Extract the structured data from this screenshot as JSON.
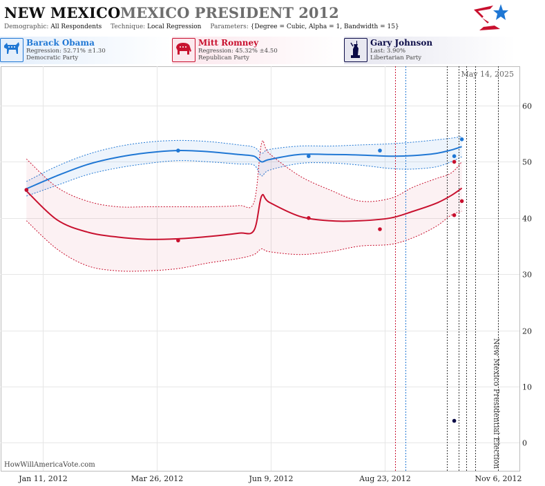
{
  "header": {
    "state": "NEW MEXICO",
    "race": "MEXICO PRESIDENT 2012",
    "demographic_label": "Demographic:",
    "demographic_value": "All Respondents",
    "technique_label": "Technique:",
    "technique_value": "Local Regression",
    "parameters_label": "Parameters:",
    "parameters_value": "{Degree = Cubic, Alpha = 1, Bandwidth = 15}"
  },
  "candidates": [
    {
      "name": "Barack Obama",
      "stat": "Regression: 52.71% ±1.30",
      "party": "Democratic Party",
      "color": "#1f77d4",
      "icon": "donkey-icon"
    },
    {
      "name": "Mitt Romney",
      "stat": "Regression: 45.32% ±4.50",
      "party": "Republican Party",
      "color": "#c8102e",
      "icon": "elephant-icon"
    },
    {
      "name": "Gary Johnson",
      "stat": "Last: 3.90%",
      "party": "Libertarian Party",
      "color": "#0a0a46",
      "icon": "liberty-icon"
    }
  ],
  "watermark": "HowWillAmericaVote.com",
  "chart_data": {
    "type": "line",
    "ylim": [
      -5,
      67
    ],
    "y_ticks": [
      0,
      10,
      20,
      30,
      40,
      50,
      60
    ],
    "x_range": [
      "2011-12-14",
      "2012-11-20"
    ],
    "x_ticks": [
      {
        "date": "2012-01-11",
        "label": "Jan 11, 2012"
      },
      {
        "date": "2012-03-26",
        "label": "Mar 26, 2012"
      },
      {
        "date": "2012-06-09",
        "label": "Jun 9, 2012"
      },
      {
        "date": "2012-08-23",
        "label": "Aug 23, 2012"
      },
      {
        "date": "2012-11-06",
        "label": "Nov 6, 2012"
      }
    ],
    "date_annotation": "May 14, 2025",
    "election_label": "New Mexico Presidential Election",
    "event_lines": [
      {
        "date": "2012-08-30",
        "color": "#c8102e"
      },
      {
        "date": "2012-09-06",
        "color": "#1f77d4"
      },
      {
        "date": "2012-10-03",
        "color": "#333333"
      },
      {
        "date": "2012-10-11",
        "color": "#333333"
      },
      {
        "date": "2012-10-16",
        "color": "#333333"
      },
      {
        "date": "2012-10-22",
        "color": "#333333"
      },
      {
        "date": "2012-11-06",
        "color": "#333333"
      }
    ],
    "series": [
      {
        "name": "Barack Obama",
        "color": "#1f77d4",
        "x": [
          "2011-12-31",
          "2012-01-20",
          "2012-02-09",
          "2012-02-29",
          "2012-03-20",
          "2012-04-09",
          "2012-04-29",
          "2012-05-19",
          "2012-05-29",
          "2012-06-03",
          "2012-06-08",
          "2012-06-28",
          "2012-07-18",
          "2012-08-07",
          "2012-08-27",
          "2012-09-11",
          "2012-09-26",
          "2012-10-06",
          "2012-10-13"
        ],
        "values": [
          45.2,
          47.5,
          49.5,
          50.8,
          51.6,
          52.0,
          51.8,
          51.3,
          51.0,
          50.0,
          50.4,
          51.3,
          51.3,
          51.2,
          51.0,
          51.1,
          51.5,
          52.1,
          52.7
        ],
        "upper": [
          46.5,
          49.2,
          51.3,
          52.7,
          53.5,
          53.8,
          53.6,
          53.0,
          52.6,
          51.5,
          52.2,
          52.8,
          52.8,
          53.0,
          53.2,
          53.5,
          53.9,
          54.2,
          54.5
        ],
        "lower": [
          43.9,
          45.8,
          47.7,
          48.9,
          49.7,
          50.2,
          50.0,
          49.6,
          49.4,
          47.5,
          48.5,
          49.7,
          49.8,
          49.4,
          48.8,
          48.7,
          49.1,
          50.0,
          50.9
        ],
        "polls": [
          {
            "x": "2011-12-31",
            "y": 45
          },
          {
            "x": "2012-04-09",
            "y": 52
          },
          {
            "x": "2012-07-04",
            "y": 51
          },
          {
            "x": "2012-08-20",
            "y": 52
          },
          {
            "x": "2012-10-08",
            "y": 51
          },
          {
            "x": "2012-10-13",
            "y": 54
          }
        ]
      },
      {
        "name": "Mitt Romney",
        "color": "#c8102e",
        "x": [
          "2011-12-31",
          "2012-01-20",
          "2012-02-09",
          "2012-02-29",
          "2012-03-20",
          "2012-04-09",
          "2012-04-29",
          "2012-05-19",
          "2012-05-29",
          "2012-06-03",
          "2012-06-08",
          "2012-06-28",
          "2012-07-18",
          "2012-08-07",
          "2012-08-27",
          "2012-09-11",
          "2012-09-26",
          "2012-10-06",
          "2012-10-13"
        ],
        "values": [
          44.8,
          39.7,
          37.5,
          36.6,
          36.2,
          36.3,
          36.7,
          37.3,
          37.8,
          43.9,
          42.8,
          40.3,
          39.5,
          39.5,
          40.0,
          41.2,
          42.6,
          44.0,
          45.3
        ],
        "upper": [
          50.5,
          45.5,
          43.0,
          42.0,
          42.0,
          42.0,
          42.0,
          42.2,
          42.8,
          53.3,
          51.5,
          47.5,
          45.0,
          43.0,
          43.5,
          45.5,
          47.0,
          48.0,
          50.0
        ],
        "lower": [
          39.5,
          34.5,
          31.5,
          30.6,
          30.6,
          31.0,
          32.0,
          32.8,
          33.5,
          34.5,
          34.0,
          33.5,
          34.0,
          35.0,
          35.3,
          36.5,
          38.5,
          40.5,
          41.2
        ],
        "polls": [
          {
            "x": "2011-12-31",
            "y": 45
          },
          {
            "x": "2012-04-09",
            "y": 36
          },
          {
            "x": "2012-07-04",
            "y": 40
          },
          {
            "x": "2012-08-20",
            "y": 38
          },
          {
            "x": "2012-10-08",
            "y": 50
          },
          {
            "x": "2012-10-08",
            "y": 40.5
          },
          {
            "x": "2012-10-13",
            "y": 43
          }
        ]
      },
      {
        "name": "Gary Johnson",
        "color": "#0a0a46",
        "x": [],
        "values": [],
        "polls": [
          {
            "x": "2012-10-08",
            "y": 3.9
          }
        ]
      }
    ]
  }
}
